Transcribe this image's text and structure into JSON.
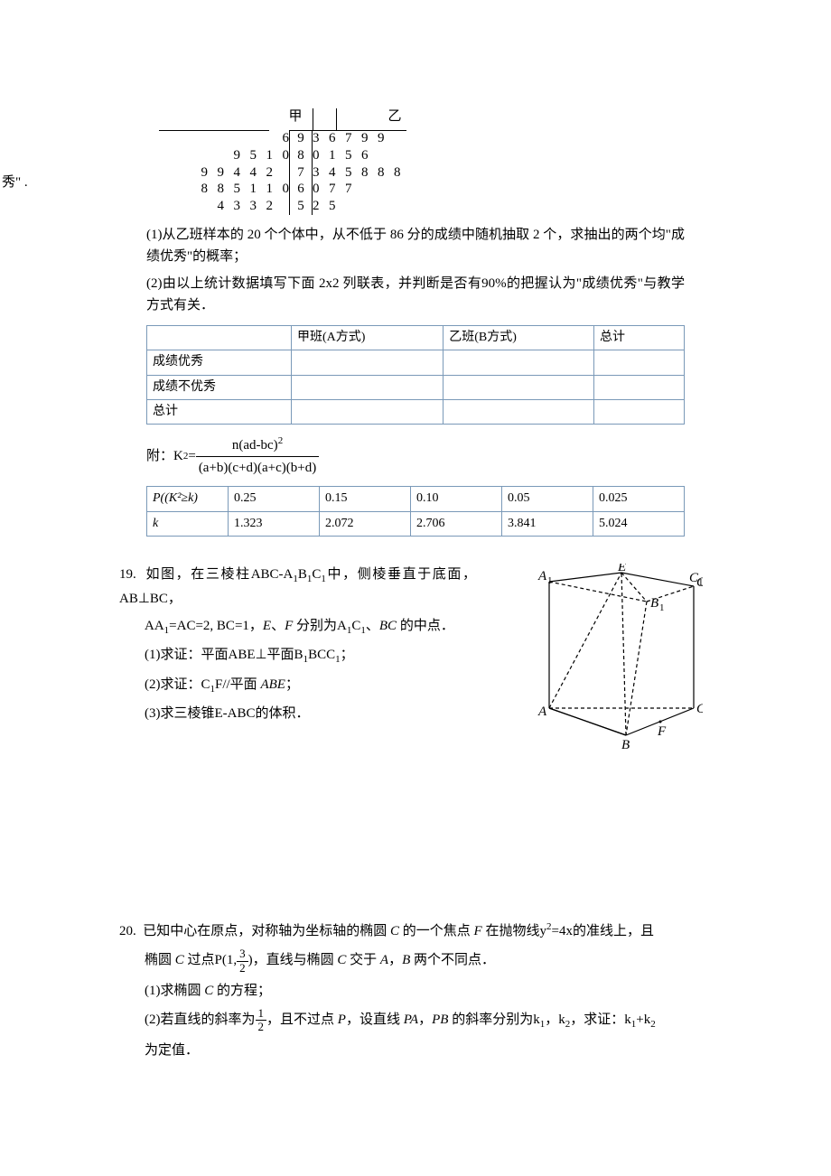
{
  "stemleaf": {
    "header_left": "甲",
    "header_right": "乙",
    "side_label": "秀\" .",
    "stems": [
      "9",
      "8",
      "7",
      "6",
      "5"
    ],
    "left_rows": [
      [
        "",
        "",
        "",
        "",
        "",
        "6"
      ],
      [
        "",
        "",
        "9",
        "5",
        "1",
        "0"
      ],
      [
        "9",
        "9",
        "4",
        "4",
        "2",
        ""
      ],
      [
        "8",
        "8",
        "5",
        "1",
        "1",
        "0"
      ],
      [
        "",
        "4",
        "3",
        "3",
        "2",
        ""
      ]
    ],
    "right_rows": [
      [
        "3",
        "6",
        "7",
        "9",
        "9",
        ""
      ],
      [
        "0",
        "1",
        "5",
        "6",
        "",
        ""
      ],
      [
        "3",
        "4",
        "5",
        "8",
        "8",
        "8"
      ],
      [
        "0",
        "7",
        "7",
        "",
        "",
        ""
      ],
      [
        "2",
        "5",
        "",
        "",
        "",
        ""
      ]
    ]
  },
  "q18": {
    "p1": "(1)从乙班样本的 20 个个体中，从不低于 86 分的成绩中随机抽取 2 个，求抽出的两个均\"成绩优秀\"的概率；",
    "p2": "(2)由以上统计数据填写下面 2x2 列联表，并判断是否有90%的把握认为\"成绩优秀\"与教学方式有关．",
    "contingency": {
      "cols": [
        "",
        "甲班(A方式)",
        "乙班(B方式)",
        "总计"
      ],
      "rows": [
        "成绩优秀",
        "成绩不优秀",
        "总计"
      ]
    },
    "formula_prefix": "附：K",
    "formula_eq": "=",
    "formula_num": "n(ad-bc)",
    "formula_den": "(a+b)(c+d)(a+c)(b+d)",
    "ktable": {
      "row1": [
        "P((K²≥k)",
        "0.25",
        "0.15",
        "0.10",
        "0.05",
        "0.025"
      ],
      "row2": [
        "k",
        "1.323",
        "2.072",
        "2.706",
        "3.841",
        "5.024"
      ]
    }
  },
  "q19": {
    "num": "19.",
    "text1_a": "如图，在三棱柱ABC-A",
    "text1_b": "B",
    "text1_c": "C",
    "text1_d": "中，侧棱垂直于底面，AB⊥BC，",
    "line2_a": "AA",
    "line2_b": "=AC=2, BC=1，",
    "line2_c": "E",
    "line2_c2": "、",
    "line2_d": "F",
    "line2_e": " 分别为A",
    "line2_f": "C",
    "line2_g": "、",
    "line2_h": "BC",
    "line2_i": " 的中点．",
    "sub1": "(1)求证：平面ABE⊥平面B",
    "sub1b": "BCC",
    "sub1c": "；",
    "sub2a": "(2)求证：C",
    "sub2b": "F//平面 ",
    "sub2c": "ABE",
    "sub2d": "；",
    "sub3": "(3)求三棱锥E-ABC的体积．",
    "labels": {
      "A": "A",
      "B": "B",
      "C": "C",
      "A1": "A₁",
      "B1": "B₁",
      "C1": "C₁",
      "E": "E",
      "F": "F"
    }
  },
  "q20": {
    "num": "20.",
    "line1a": "已知中心在原点，对称轴为坐标轴的椭圆 ",
    "line1b": "C",
    "line1c": " 的一个焦点 ",
    "line1d": "F",
    "line1e": " 在抛物线y",
    "line1f": "=4x的准线上，且",
    "line2a": "椭圆 ",
    "line2b": "C",
    "line2c": " 过点P(1,",
    "frac_num": "3",
    "frac_den": "2",
    "line2d": ")，直线与椭圆 ",
    "line2e": "C",
    "line2f": " 交于 ",
    "line2g": "A",
    "line2h": "，",
    "line2i": "B",
    "line2j": " 两个不同点．",
    "sub1a": "(1)求椭圆 ",
    "sub1b": "C",
    "sub1c": " 的方程；",
    "sub2a": "(2)若直线的斜率为",
    "sub2_num": "1",
    "sub2_den": "2",
    "sub2b": "，且不过点 ",
    "sub2c": "P",
    "sub2d": "，设直线 ",
    "sub2e": "PA",
    "sub2f": "，",
    "sub2g": "PB",
    "sub2h": " 的斜率分别为k",
    "sub2i": "，k",
    "sub2j": "，求证：k",
    "sub2k": "+k",
    "sub3": "为定值．"
  }
}
